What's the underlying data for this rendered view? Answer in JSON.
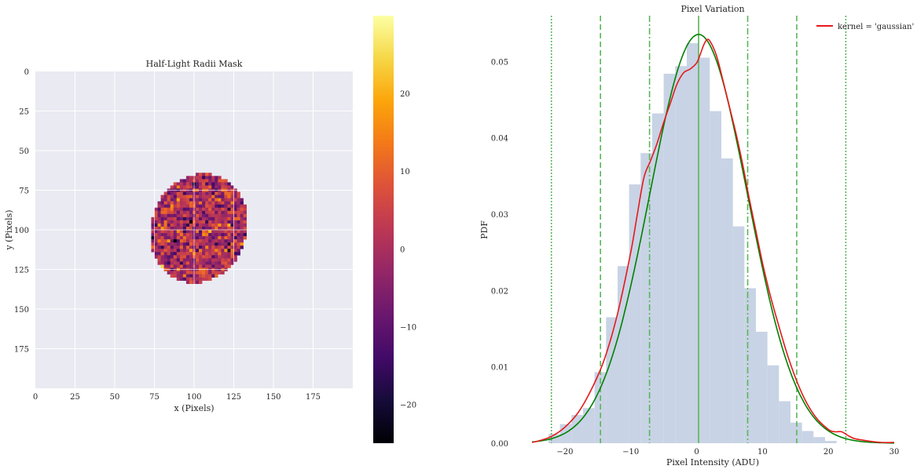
{
  "chart_data": [
    {
      "type": "heatmap",
      "title": "Half-Light Radii Mask",
      "xlabel": "x (Pixels)",
      "ylabel": "y (Pixels)",
      "xlim": [
        0,
        200
      ],
      "ylim": [
        200,
        0
      ],
      "x_ticks": [
        0,
        25,
        50,
        75,
        100,
        125,
        150,
        175
      ],
      "y_ticks": [
        0,
        25,
        50,
        75,
        100,
        125,
        150,
        175
      ],
      "grid": true,
      "colormap": "inferno",
      "mask_ellipse": {
        "center_x": 103,
        "center_y": 99,
        "semi_axis_x": 30,
        "semi_axis_y": 35,
        "rotation_deg": 20
      },
      "pixel_value_mean": 0,
      "pixel_value_std": 7.5,
      "colorbar": {
        "min": -25,
        "max": 30,
        "ticks": [
          "20",
          "10",
          "0",
          "−10",
          "−20"
        ],
        "tick_values": [
          20,
          10,
          0,
          -10,
          -20
        ]
      }
    },
    {
      "type": "bar",
      "title": "Pixel Variation",
      "xlabel": "Pixel Intensity (ADU)",
      "ylabel": "PDF",
      "xlim": [
        -25,
        30
      ],
      "ylim": [
        0,
        0.056
      ],
      "x_ticks": [
        "−20",
        "−10",
        "0",
        "10",
        "20",
        "30"
      ],
      "x_tick_values": [
        -20,
        -10,
        0,
        10,
        20,
        30
      ],
      "y_ticks": [
        "0.00",
        "0.01",
        "0.02",
        "0.03",
        "0.04",
        "0.05"
      ],
      "y_tick_values": [
        0,
        0.01,
        0.02,
        0.03,
        0.04,
        0.05
      ],
      "legend": {
        "placement": "top-right",
        "entries": [
          "kernel = 'gaussian'"
        ]
      },
      "histogram": {
        "bin_edges": [
          -22.5,
          -20.75,
          -19,
          -17.25,
          -15.5,
          -13.75,
          -12,
          -10.25,
          -8.5,
          -6.75,
          -5,
          -3.25,
          -1.5,
          0.25,
          2,
          3.75,
          5.5,
          7.25,
          9,
          10.75,
          12.5,
          14.25,
          16,
          17.75,
          19.5,
          21.25
        ],
        "values": [
          0.0012,
          0.0025,
          0.0037,
          0.0046,
          0.0093,
          0.0165,
          0.0232,
          0.0339,
          0.038,
          0.0432,
          0.0484,
          0.0494,
          0.0524,
          0.0505,
          0.0435,
          0.0373,
          0.0284,
          0.0203,
          0.0146,
          0.0102,
          0.0055,
          0.0027,
          0.0016,
          0.0008,
          0.0003
        ],
        "color": "#c8d3e5"
      },
      "kde_curve": {
        "color": "#e41a1c",
        "x": [
          -26,
          -24,
          -22,
          -20,
          -18,
          -16,
          -14,
          -12,
          -10,
          -9,
          -8,
          -7,
          -6,
          -5,
          -4,
          -3,
          -2,
          -1,
          0,
          0.5,
          1,
          1.5,
          2,
          3,
          4,
          5,
          6,
          7,
          8,
          9,
          10,
          11,
          12,
          14,
          16,
          18,
          20,
          21,
          22,
          23,
          24,
          26,
          28,
          30
        ],
        "y": [
          0.0001,
          0.0003,
          0.0009,
          0.0021,
          0.004,
          0.007,
          0.011,
          0.017,
          0.025,
          0.03,
          0.0348,
          0.037,
          0.0393,
          0.042,
          0.0445,
          0.047,
          0.0485,
          0.049,
          0.0498,
          0.0508,
          0.052,
          0.0528,
          0.0527,
          0.0508,
          0.0475,
          0.044,
          0.0405,
          0.0365,
          0.032,
          0.0278,
          0.0236,
          0.02,
          0.0168,
          0.011,
          0.0065,
          0.0035,
          0.0018,
          0.0015,
          0.0015,
          0.001,
          0.0006,
          0.0003,
          0.0001,
          0.0001
        ]
      },
      "normal_curve": {
        "color": "#008000",
        "mean": 0.3,
        "std": 7.45
      },
      "vertical_lines": [
        {
          "x": 0.3,
          "style": "solid",
          "color": "#5ab55a"
        },
        {
          "x": -7.15,
          "style": "dashdot",
          "color": "#5ab55a"
        },
        {
          "x": 7.75,
          "style": "dashdot",
          "color": "#5ab55a"
        },
        {
          "x": -14.6,
          "style": "dashed",
          "color": "#5ab55a"
        },
        {
          "x": 15.2,
          "style": "dashed",
          "color": "#5ab55a"
        },
        {
          "x": -22.05,
          "style": "dotted",
          "color": "#5ab55a"
        },
        {
          "x": 22.65,
          "style": "dotted",
          "color": "#5ab55a"
        }
      ]
    }
  ]
}
